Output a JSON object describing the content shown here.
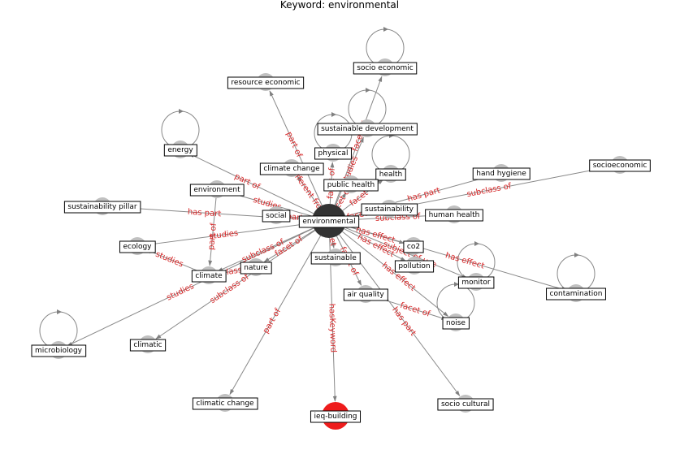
{
  "title": "Keyword: environmental",
  "colors": {
    "edge": "#888888",
    "node": "#c0c0c0",
    "center_node": "#333333",
    "highlight_node": "#ee1c1c",
    "edge_label": "#d62728",
    "label_box_fill": "#ffffff",
    "label_box_stroke": "#000000"
  },
  "graph": {
    "center": "environmental",
    "highlight": "ieq-building",
    "nodes": [
      {
        "id": "socio economic",
        "label": "socio economic"
      },
      {
        "id": "resource economic",
        "label": "resource economic"
      },
      {
        "id": "sustainable development",
        "label": "sustainable development"
      },
      {
        "id": "energy",
        "label": "energy"
      },
      {
        "id": "physical",
        "label": "physical"
      },
      {
        "id": "climate change",
        "label": "climate change"
      },
      {
        "id": "health",
        "label": "health"
      },
      {
        "id": "hand hygiene",
        "label": "hand hygiene"
      },
      {
        "id": "socioeconomic",
        "label": "socioeconomic"
      },
      {
        "id": "environment",
        "label": "environment"
      },
      {
        "id": "public health",
        "label": "public health"
      },
      {
        "id": "sustainability pillar",
        "label": "sustainability pillar"
      },
      {
        "id": "sustainability",
        "label": "sustainability"
      },
      {
        "id": "social",
        "label": "social"
      },
      {
        "id": "environmental",
        "label": "environmental"
      },
      {
        "id": "human health",
        "label": "human health"
      },
      {
        "id": "ecology",
        "label": "ecology"
      },
      {
        "id": "co2",
        "label": "co2"
      },
      {
        "id": "sustainable",
        "label": "sustainable"
      },
      {
        "id": "nature",
        "label": "nature"
      },
      {
        "id": "pollution",
        "label": "pollution"
      },
      {
        "id": "climate",
        "label": "climate"
      },
      {
        "id": "monitor",
        "label": "monitor"
      },
      {
        "id": "contamination",
        "label": "contamination"
      },
      {
        "id": "air quality",
        "label": "air quality"
      },
      {
        "id": "noise",
        "label": "noise"
      },
      {
        "id": "microbiology",
        "label": "microbiology"
      },
      {
        "id": "climatic",
        "label": "climatic"
      },
      {
        "id": "climatic change",
        "label": "climatic change"
      },
      {
        "id": "ieq-building",
        "label": "ieq-building"
      },
      {
        "id": "socio cultural",
        "label": "socio cultural"
      }
    ],
    "self_loops": [
      "socio economic",
      "energy",
      "sustainable development",
      "health",
      "physical",
      "microbiology",
      "contamination",
      "monitor",
      "noise"
    ],
    "edges": [
      {
        "from": "environmental",
        "to": "socio economic",
        "label": "facet of"
      },
      {
        "from": "environmental",
        "to": "resource economic",
        "label": "part of"
      },
      {
        "from": "environmental",
        "to": "sustainable development",
        "label": "studies"
      },
      {
        "from": "environmental",
        "to": "energy",
        "label": "part of"
      },
      {
        "from": "environmental",
        "to": "physical",
        "label": "facet of"
      },
      {
        "from": "environmental",
        "to": "climate change",
        "label": "different from"
      },
      {
        "from": "environmental",
        "to": "health",
        "label": "facet of"
      },
      {
        "from": "environmental",
        "to": "hand hygiene",
        "label": "has part"
      },
      {
        "from": "environmental",
        "to": "socioeconomic",
        "label": "subclass of"
      },
      {
        "from": "environmental",
        "to": "environment",
        "label": "studies"
      },
      {
        "from": "environmental",
        "to": "public health",
        "label": "facet of"
      },
      {
        "from": "environmental",
        "to": "sustainability pillar",
        "label": "has part"
      },
      {
        "from": "environmental",
        "to": "sustainability",
        "label": "facet of"
      },
      {
        "from": "environmental",
        "to": "social",
        "label": "part of"
      },
      {
        "from": "environmental",
        "to": "human health",
        "label": "subclass of"
      },
      {
        "from": "environmental",
        "to": "ecology",
        "label": "studies"
      },
      {
        "from": "environmental",
        "to": "co2",
        "label": "has effect"
      },
      {
        "from": "environmental",
        "to": "sustainable",
        "label": "facet of"
      },
      {
        "from": "environmental",
        "to": "nature",
        "label": "facet of"
      },
      {
        "from": "environmental",
        "to": "pollution",
        "label": "has effect"
      },
      {
        "from": "environmental",
        "to": "climate",
        "label": "subclass of"
      },
      {
        "from": "environmental",
        "to": "monitor",
        "label": "subject of use"
      },
      {
        "from": "environmental",
        "to": "contamination",
        "label": "has effect"
      },
      {
        "from": "environmental",
        "to": "air quality",
        "label": "facet of"
      },
      {
        "from": "environmental",
        "to": "noise",
        "label": "has effect"
      },
      {
        "from": "environmental",
        "to": "microbiology",
        "label": "studies"
      },
      {
        "from": "environmental",
        "to": "climatic",
        "label": "subclass of"
      },
      {
        "from": "environmental",
        "to": "climatic change",
        "label": "part of"
      },
      {
        "from": "environmental",
        "to": "ieq-building",
        "label": "hasKeyword"
      },
      {
        "from": "environmental",
        "to": "socio cultural",
        "label": "has part"
      },
      {
        "from": "climate",
        "to": "ecology",
        "label": "studies"
      },
      {
        "from": "nature",
        "to": "climate",
        "label": "subclass of"
      },
      {
        "from": "environment",
        "to": "climate",
        "label": "part of"
      },
      {
        "from": "air quality",
        "to": "noise",
        "label": "facet of"
      }
    ]
  }
}
